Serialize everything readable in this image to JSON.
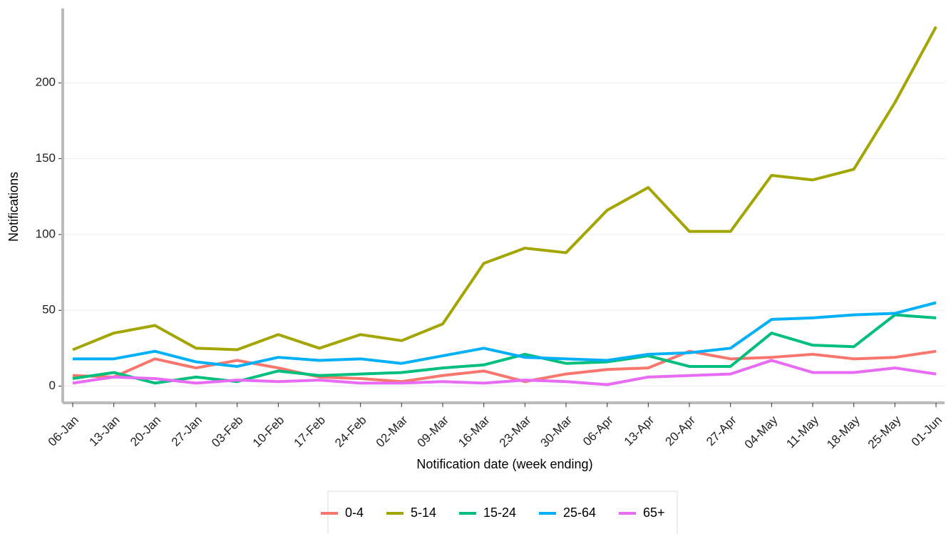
{
  "chart_data": {
    "type": "line",
    "xlabel": "Notification date (week ending)",
    "ylabel": "Notifications",
    "categories": [
      "06-Jan",
      "13-Jan",
      "20-Jan",
      "27-Jan",
      "03-Feb",
      "10-Feb",
      "17-Feb",
      "24-Feb",
      "02-Mar",
      "09-Mar",
      "16-Mar",
      "23-Mar",
      "30-Mar",
      "06-Apr",
      "13-Apr",
      "20-Apr",
      "27-Apr",
      "04-May",
      "11-May",
      "18-May",
      "25-May",
      "01-Jun"
    ],
    "series": [
      {
        "name": "0-4",
        "color": "#F8766D",
        "values": [
          7,
          6,
          18,
          12,
          17,
          12,
          6,
          5,
          3,
          7,
          10,
          3,
          8,
          11,
          12,
          23,
          18,
          19,
          21,
          18,
          19,
          23
        ]
      },
      {
        "name": "5-14",
        "color": "#A3A500",
        "values": [
          24,
          35,
          40,
          25,
          24,
          34,
          25,
          34,
          30,
          41,
          81,
          91,
          88,
          116,
          131,
          102,
          102,
          139,
          136,
          143,
          187,
          237
        ]
      },
      {
        "name": "15-24",
        "color": "#00BF7D",
        "values": [
          5,
          9,
          2,
          6,
          3,
          10,
          7,
          8,
          9,
          12,
          14,
          21,
          15,
          16,
          20,
          13,
          13,
          35,
          27,
          26,
          47,
          45
        ]
      },
      {
        "name": "25-64",
        "color": "#00B0F6",
        "values": [
          18,
          18,
          23,
          16,
          13,
          19,
          17,
          18,
          15,
          20,
          25,
          19,
          18,
          17,
          21,
          22,
          25,
          44,
          45,
          47,
          48,
          55
        ]
      },
      {
        "name": "65+",
        "color": "#E76BF3",
        "values": [
          2,
          6,
          5,
          2,
          4,
          3,
          4,
          2,
          2,
          3,
          2,
          4,
          3,
          1,
          6,
          7,
          8,
          17,
          9,
          9,
          12,
          8
        ]
      }
    ],
    "ylim": [
      -11,
      249
    ],
    "yticks": [
      0,
      50,
      100,
      150,
      200
    ],
    "grid": true,
    "legend": "bottom"
  }
}
